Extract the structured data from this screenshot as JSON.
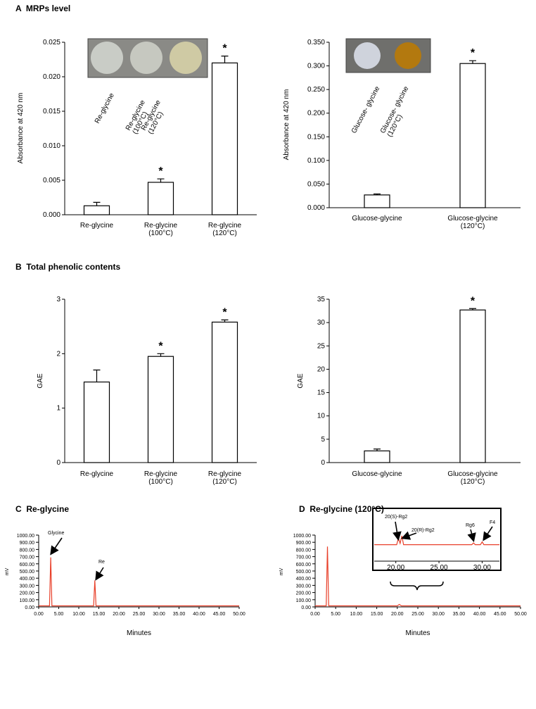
{
  "chart_data": [
    {
      "type": "bar",
      "title": "A  MRPs level",
      "ylabel": "Absorbance at 420 nm",
      "categories": [
        "Re-glycine",
        "Re-glycine (100°C)",
        "Re-glycine (120°C)"
      ],
      "values": [
        0.0013,
        0.0047,
        0.022
      ],
      "errors": [
        0.0005,
        0.0005,
        0.001
      ],
      "significance": [
        null,
        "*",
        "*"
      ],
      "inset_labels": [
        "Re-glycine",
        "Re-glycine (100°C)",
        "Re-glycine (120°C)"
      ],
      "color": "#ffffff",
      "ylim": [
        0,
        0.025
      ],
      "yticks": [
        {
          "value": 0,
          "label": "0.000"
        },
        {
          "value": 0.005,
          "label": "0.005"
        },
        {
          "value": 0.01,
          "label": "0.010"
        },
        {
          "value": 0.015,
          "label": "0.015"
        },
        {
          "value": 0.02,
          "label": "0.020"
        },
        {
          "value": 0.025,
          "label": "0.025"
        }
      ]
    },
    {
      "type": "bar",
      "ylabel": "Absorbance at 420 nm",
      "categories": [
        "Glucose-glycine",
        "Glucose-glycine (120°C)"
      ],
      "values": [
        0.027,
        0.305
      ],
      "errors": [
        0.002,
        0.006
      ],
      "significance": [
        null,
        "*"
      ],
      "inset_labels": [
        "Glucose- glycine",
        "Glucose- glycine (120°C)"
      ],
      "color": "#ffffff",
      "ylim": [
        0,
        0.35
      ],
      "yticks": [
        {
          "value": 0,
          "label": "0.000"
        },
        {
          "value": 0.05,
          "label": "0.050"
        },
        {
          "value": 0.1,
          "label": "0.100"
        },
        {
          "value": 0.15,
          "label": "0.150"
        },
        {
          "value": 0.2,
          "label": "0.200"
        },
        {
          "value": 0.25,
          "label": "0.250"
        },
        {
          "value": 0.3,
          "label": "0.300"
        },
        {
          "value": 0.35,
          "label": "0.350"
        }
      ]
    },
    {
      "type": "bar",
      "title": "B  Total phenolic contents",
      "ylabel": "GAE",
      "categories": [
        "Re-glycine",
        "Re-glycine (100°C)",
        "Re-glycine (120°C)"
      ],
      "values": [
        1.48,
        1.95,
        2.58
      ],
      "errors": [
        0.22,
        0.05,
        0.04
      ],
      "significance": [
        null,
        "*",
        "*"
      ],
      "color": "#ffffff",
      "ylim": [
        0,
        3
      ],
      "yticks": [
        0,
        1,
        2,
        3
      ]
    },
    {
      "type": "bar",
      "ylabel": "GAE",
      "categories": [
        "Glucose-glycine",
        "Glucose-glycine (120°C)"
      ],
      "values": [
        2.5,
        32.7
      ],
      "errors": [
        0.4,
        0.3
      ],
      "significance": [
        null,
        "*"
      ],
      "color": "#ffffff",
      "ylim": [
        0,
        35
      ],
      "yticks": [
        0,
        5,
        10,
        15,
        20,
        25,
        30,
        35
      ]
    },
    {
      "type": "line",
      "title": "C  Re-glycine",
      "ylabel": "mV",
      "xlabel": "Minutes",
      "x": [
        0,
        2.7,
        3.0,
        3.3,
        13.7,
        14.0,
        14.3,
        50
      ],
      "values": [
        15,
        15,
        690,
        15,
        15,
        370,
        15,
        15
      ],
      "color": "#e8402a",
      "annotations": [
        "Glycine",
        "Re"
      ],
      "xlim": [
        0,
        50
      ],
      "xticks": [
        {
          "value": 0,
          "label": "0.00"
        },
        {
          "value": 5,
          "label": "5.00"
        },
        {
          "value": 10,
          "label": "10.00"
        },
        {
          "value": 15,
          "label": "15.00"
        },
        {
          "value": 20,
          "label": "20.00"
        },
        {
          "value": 25,
          "label": "25.00"
        },
        {
          "value": 30,
          "label": "30.00"
        },
        {
          "value": 35,
          "label": "35.00"
        },
        {
          "value": 40,
          "label": "40.00"
        },
        {
          "value": 45,
          "label": "45.00"
        },
        {
          "value": 50,
          "label": "50.00"
        }
      ],
      "ylim": [
        0,
        1000
      ],
      "yticks": [
        {
          "value": 0,
          "label": "0.00"
        },
        {
          "value": 100,
          "label": "100.00"
        },
        {
          "value": 200,
          "label": "200.00"
        },
        {
          "value": 300,
          "label": "300.00"
        },
        {
          "value": 400,
          "label": "400.00"
        },
        {
          "value": 500,
          "label": "500.00"
        },
        {
          "value": 600,
          "label": "600.00"
        },
        {
          "value": 700,
          "label": "700.00"
        },
        {
          "value": 800,
          "label": "800.00"
        },
        {
          "value": 900,
          "label": "900.00"
        },
        {
          "value": 1000,
          "label": "1000.00"
        }
      ]
    },
    {
      "type": "line",
      "title": "D  Re-glycine (120°C)",
      "ylabel": "mV",
      "xlabel": "Minutes",
      "x": [
        0,
        2.7,
        3.0,
        3.3,
        20.0,
        20.5,
        21.0,
        50
      ],
      "values": [
        15,
        15,
        840,
        15,
        15,
        35,
        15,
        15
      ],
      "color": "#e8402a",
      "xlim": [
        0,
        50
      ],
      "xticks": [
        {
          "value": 0,
          "label": "0.00"
        },
        {
          "value": 5,
          "label": "5.00"
        },
        {
          "value": 10,
          "label": "10.00"
        },
        {
          "value": 15,
          "label": "15.00"
        },
        {
          "value": 20,
          "label": "20.00"
        },
        {
          "value": 25,
          "label": "25.00"
        },
        {
          "value": 30,
          "label": "30.00"
        },
        {
          "value": 35,
          "label": "35.00"
        },
        {
          "value": 40,
          "label": "40.00"
        },
        {
          "value": 45,
          "label": "45.00"
        },
        {
          "value": 50,
          "label": "50.00"
        }
      ],
      "ylim": [
        0,
        1000
      ],
      "yticks": [
        {
          "value": 0,
          "label": "0.00"
        },
        {
          "value": 100,
          "label": "100.00"
        },
        {
          "value": 200,
          "label": "200.00"
        },
        {
          "value": 300,
          "label": "300.00"
        },
        {
          "value": 400,
          "label": "400.00"
        },
        {
          "value": 500,
          "label": "500.00"
        },
        {
          "value": 600,
          "label": "600.00"
        },
        {
          "value": 700,
          "label": "700.00"
        },
        {
          "value": 800,
          "label": "800.00"
        },
        {
          "value": 900,
          "label": "900.00"
        },
        {
          "value": 1000,
          "label": "1000.00"
        }
      ]
    },
    {
      "type": "line",
      "x": [
        17.5,
        20.1,
        20.3,
        20.5,
        20.7,
        20.9,
        28.8,
        29.0,
        29.2,
        29.8,
        30.0,
        30.2,
        32
      ],
      "values": [
        465,
        465,
        490,
        470,
        500,
        465,
        465,
        472,
        465,
        465,
        476,
        465,
        465
      ],
      "color": "#e8402a",
      "annotations": [
        "20(S)-Rg2",
        "20(R)-Rg2",
        "Rg6",
        "F4"
      ],
      "xlim": [
        17.5,
        32
      ],
      "xticks": [
        {
          "value": 20,
          "label": "20.00"
        },
        {
          "value": 25,
          "label": "25.00"
        },
        {
          "value": 30,
          "label": "30.00"
        }
      ],
      "ylim": [
        400,
        600
      ]
    }
  ]
}
